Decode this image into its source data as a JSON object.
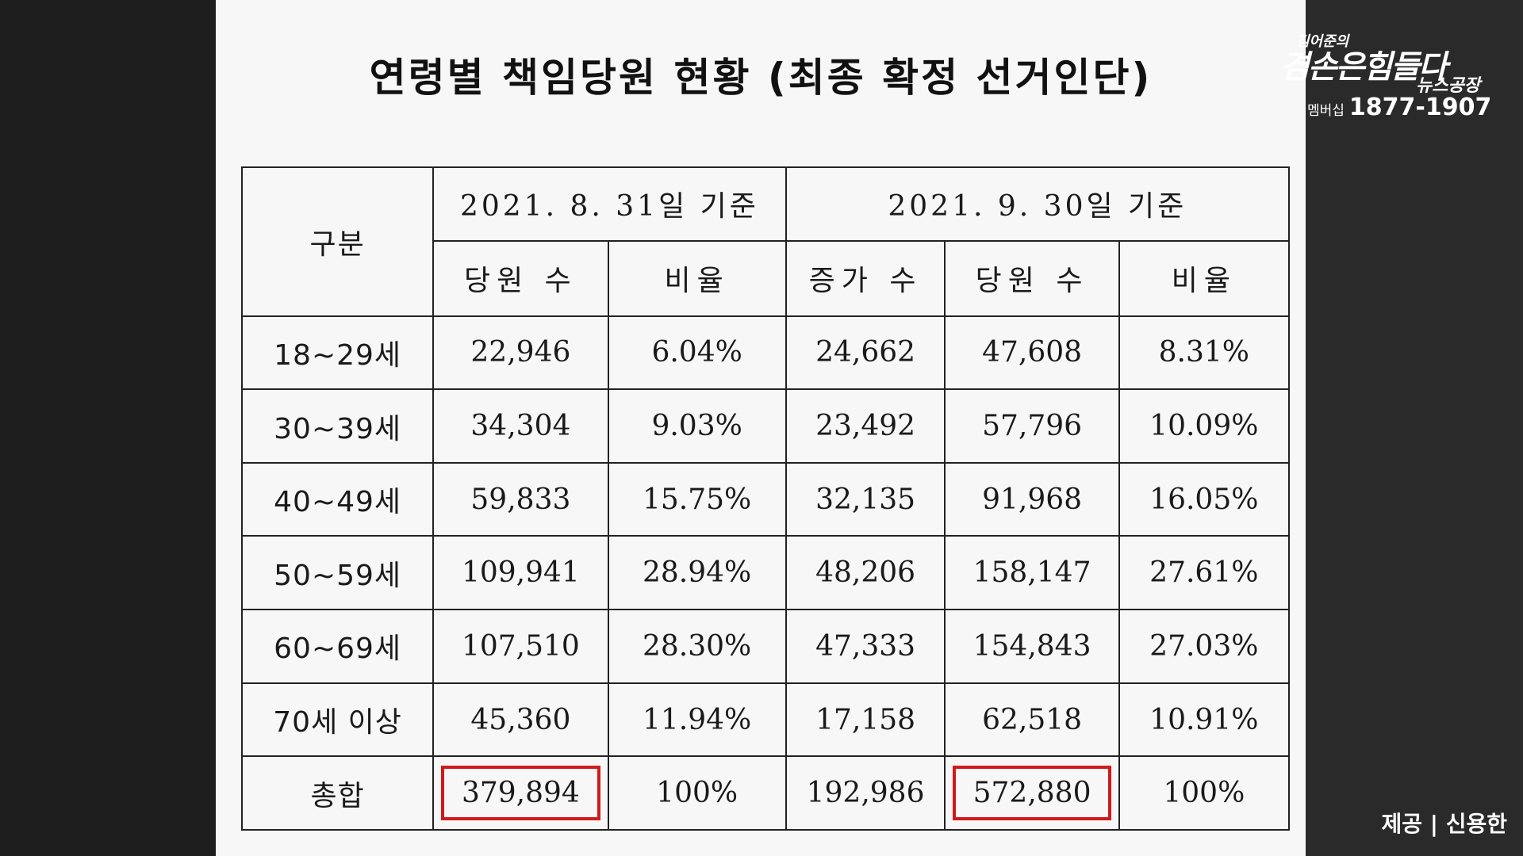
{
  "title": "연령별 책임당원 현황 (최종 확정 선거인단)",
  "table": {
    "corner": "구분",
    "period1": "2021. 8. 31일 기준",
    "period2": "2021. 9. 30일 기준",
    "sub_headers": [
      "당원 수",
      "비율",
      "증가 수",
      "당원 수",
      "비율"
    ],
    "rows": [
      {
        "label": "18~29세",
        "cells": [
          "22,946",
          "6.04%",
          "24,662",
          "47,608",
          "8.31%"
        ]
      },
      {
        "label": "30~39세",
        "cells": [
          "34,304",
          "9.03%",
          "23,492",
          "57,796",
          "10.09%"
        ]
      },
      {
        "label": "40~49세",
        "cells": [
          "59,833",
          "15.75%",
          "32,135",
          "91,968",
          "16.05%"
        ]
      },
      {
        "label": "50~59세",
        "cells": [
          "109,941",
          "28.94%",
          "48,206",
          "158,147",
          "27.61%"
        ]
      },
      {
        "label": "60~69세",
        "cells": [
          "107,510",
          "28.30%",
          "47,333",
          "154,843",
          "27.03%"
        ]
      },
      {
        "label": "70세 이상",
        "cells": [
          "45,360",
          "11.94%",
          "17,158",
          "62,518",
          "10.91%"
        ]
      },
      {
        "label": "총합",
        "cells": [
          "379,894",
          "100%",
          "192,986",
          "572,880",
          "100%"
        ]
      }
    ],
    "highlight_color": "#d11a1a"
  },
  "logo": {
    "line1": "김어준의",
    "line2": "겸손은힘들다",
    "line3": "뉴스공장",
    "membership_label": "멤버십",
    "phone": "1877-1907"
  },
  "credit": "제공 | 신용한"
}
